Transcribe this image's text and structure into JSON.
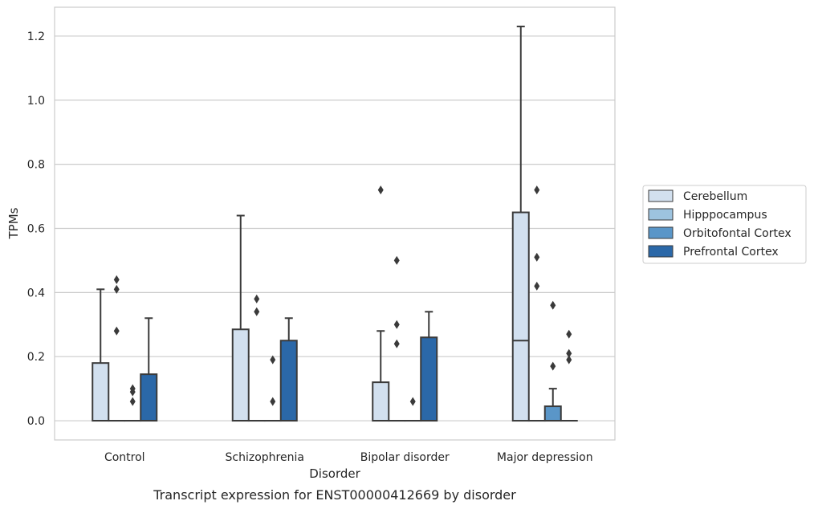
{
  "chart_data": {
    "type": "box",
    "title": "",
    "caption": "Transcript expression for ENST00000412669 by disorder",
    "xlabel": "Disorder",
    "ylabel": "TPMs",
    "ylim": [
      -0.06,
      1.29
    ],
    "yticks": [
      0.0,
      0.2,
      0.4,
      0.6,
      0.8,
      1.0,
      1.2
    ],
    "ytick_labels": [
      "0.0",
      "0.2",
      "0.4",
      "0.6",
      "0.8",
      "1.0",
      "1.2"
    ],
    "grid": "horizontal",
    "legend_position": "right",
    "categories": [
      "Control",
      "Schizophrenia",
      "Bipolar disorder",
      "Major depression"
    ],
    "series": [
      {
        "name": "Cerebellum",
        "color": "#d2e0ef",
        "boxes": [
          {
            "q1": 0.0,
            "median": 0.0,
            "q3": 0.18,
            "whisker_low": 0.0,
            "whisker_high": 0.41,
            "outliers": []
          },
          {
            "q1": 0.0,
            "median": 0.0,
            "q3": 0.285,
            "whisker_low": 0.0,
            "whisker_high": 0.64,
            "outliers": []
          },
          {
            "q1": 0.0,
            "median": 0.0,
            "q3": 0.12,
            "whisker_low": 0.0,
            "whisker_high": 0.28,
            "outliers": [
              0.72
            ]
          },
          {
            "q1": 0.0,
            "median": 0.25,
            "q3": 0.65,
            "whisker_low": 0.0,
            "whisker_high": 1.23,
            "outliers": []
          }
        ]
      },
      {
        "name": "Hipppocampus",
        "color": "#9dc3df",
        "boxes": [
          {
            "q1": 0.0,
            "median": 0.0,
            "q3": 0.0,
            "whisker_low": 0.0,
            "whisker_high": 0.0,
            "outliers": [
              0.28,
              0.41,
              0.44
            ]
          },
          {
            "q1": 0.0,
            "median": 0.0,
            "q3": 0.0,
            "whisker_low": 0.0,
            "whisker_high": 0.0,
            "outliers": [
              0.34,
              0.38
            ]
          },
          {
            "q1": 0.0,
            "median": 0.0,
            "q3": 0.0,
            "whisker_low": 0.0,
            "whisker_high": 0.0,
            "outliers": [
              0.24,
              0.3,
              0.5
            ]
          },
          {
            "q1": 0.0,
            "median": 0.0,
            "q3": 0.0,
            "whisker_low": 0.0,
            "whisker_high": 0.0,
            "outliers": [
              0.42,
              0.51,
              0.72
            ]
          }
        ]
      },
      {
        "name": "Orbitofontal Cortex",
        "color": "#5a96c8",
        "boxes": [
          {
            "q1": 0.0,
            "median": 0.0,
            "q3": 0.0,
            "whisker_low": 0.0,
            "whisker_high": 0.0,
            "outliers": [
              0.06,
              0.09,
              0.1
            ]
          },
          {
            "q1": 0.0,
            "median": 0.0,
            "q3": 0.0,
            "whisker_low": 0.0,
            "whisker_high": 0.0,
            "outliers": [
              0.06,
              0.19
            ]
          },
          {
            "q1": 0.0,
            "median": 0.0,
            "q3": 0.0,
            "whisker_low": 0.0,
            "whisker_high": 0.0,
            "outliers": [
              0.06
            ]
          },
          {
            "q1": 0.0,
            "median": 0.0,
            "q3": 0.045,
            "whisker_low": 0.0,
            "whisker_high": 0.1,
            "outliers": [
              0.17,
              0.36
            ]
          }
        ]
      },
      {
        "name": "Prefrontal Cortex",
        "color": "#2b68a8",
        "boxes": [
          {
            "q1": 0.0,
            "median": 0.0,
            "q3": 0.145,
            "whisker_low": 0.0,
            "whisker_high": 0.32,
            "outliers": []
          },
          {
            "q1": 0.0,
            "median": 0.0,
            "q3": 0.25,
            "whisker_low": 0.0,
            "whisker_high": 0.32,
            "outliers": []
          },
          {
            "q1": 0.0,
            "median": 0.0,
            "q3": 0.26,
            "whisker_low": 0.0,
            "whisker_high": 0.34,
            "outliers": []
          },
          {
            "q1": 0.0,
            "median": 0.0,
            "q3": 0.0,
            "whisker_low": 0.0,
            "whisker_high": 0.0,
            "outliers": [
              0.19,
              0.21,
              0.27
            ]
          }
        ]
      }
    ]
  }
}
